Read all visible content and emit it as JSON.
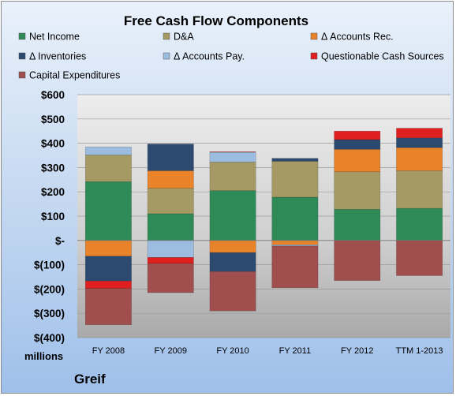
{
  "chart_data": {
    "type": "bar",
    "stacked": true,
    "title": "Free Cash Flow Components",
    "units_label": "millions",
    "company": "Greif",
    "categories": [
      "FY 2008",
      "FY 2009",
      "FY 2010",
      "FY 2011",
      "FY 2012",
      "TTM 1-2013"
    ],
    "ylim": [
      -400,
      600
    ],
    "yticks": [
      600,
      500,
      400,
      300,
      200,
      100,
      0,
      -100,
      -200,
      -300,
      -400
    ],
    "ytick_labels": [
      "$600",
      "$500",
      "$400",
      "$300",
      "$200",
      "$100",
      "$-",
      "$(100)",
      "$(200)",
      "$(300)",
      "$(400)"
    ],
    "grid": true,
    "legend_position": "top",
    "series": [
      {
        "name": "Net Income",
        "color": "#2e8b57",
        "values": [
          242,
          110,
          205,
          178,
          128,
          132
        ]
      },
      {
        "name": "D&A",
        "color": "#a59a64",
        "values": [
          110,
          105,
          118,
          148,
          155,
          155
        ]
      },
      {
        "name": "Δ Accounts Rec.",
        "color": "#e8832a",
        "values": [
          -65,
          72,
          -50,
          -18,
          92,
          95
        ]
      },
      {
        "name": "Δ Inventories",
        "color": "#2c4a70",
        "values": [
          -102,
          110,
          -78,
          12,
          40,
          40
        ]
      },
      {
        "name": "Δ Accounts Pay.",
        "color": "#9cbde0",
        "values": [
          33,
          -70,
          40,
          -5,
          0,
          0
        ]
      },
      {
        "name": "Questionable Cash Sources",
        "color": "#e02020",
        "values": [
          -30,
          -25,
          2,
          0,
          35,
          40
        ]
      },
      {
        "name": "Capital Expenditures",
        "color": "#a04e4e",
        "values": [
          -150,
          -120,
          -162,
          -172,
          -165,
          -145
        ]
      }
    ]
  }
}
